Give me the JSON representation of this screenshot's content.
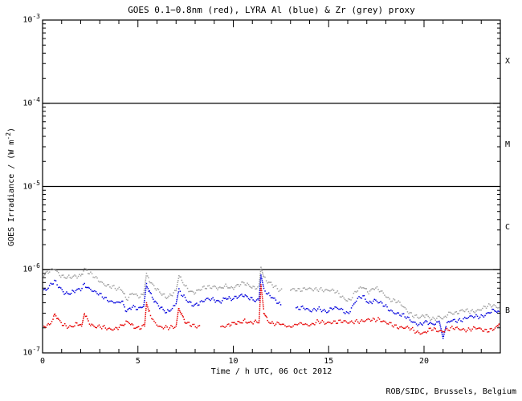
{
  "credit": "ROB/SIDC, Brussels, Belgium",
  "colors": {
    "background": "#ffffff",
    "frame": "#000000",
    "goes_red": "#e60000",
    "lyra_al_blue": "#0000dd",
    "lyra_zr_grey": "#a0a0a0"
  },
  "chart_data": {
    "type": "line",
    "title": "GOES 0.1−0.8nm (red), LYRA Al (blue) & Zr (grey) proxy",
    "xlabel": "Time / h UTC, 06 Oct 2012",
    "ylabel": "GOES Irradiance / (W m-2)",
    "ylabel_parts": {
      "pre": "GOES Irradiance / (W m",
      "exp": "-2",
      "post": ")"
    },
    "axes": {
      "x": {
        "min": 0,
        "max": 24,
        "major_step": 5,
        "minor_step": 1,
        "tick_labels": [
          0,
          5,
          10,
          15,
          20
        ]
      },
      "y": {
        "scale": "log",
        "min_exp": -7,
        "max_exp": -3,
        "tick_exponents": [
          -3,
          -4,
          -5,
          -6,
          -7
        ]
      }
    },
    "class_boundary_exponents": [
      -4,
      -5,
      -6
    ],
    "flare_classes": [
      {
        "label": "X",
        "exp_low": -4,
        "exp_high": -3
      },
      {
        "label": "M",
        "exp_low": -5,
        "exp_high": -4
      },
      {
        "label": "C",
        "exp_low": -6,
        "exp_high": -5
      },
      {
        "label": "B",
        "exp_low": -7,
        "exp_high": -6
      }
    ],
    "series": [
      {
        "name": "LYRA Zr proxy",
        "color": "#a0a0a0",
        "segments": [
          [
            [
              0,
              8.4e-07
            ],
            [
              0.3,
              9.2e-07
            ],
            [
              0.63,
              1.03e-06
            ],
            [
              0.9,
              8.9e-07
            ],
            [
              1.2,
              8.1e-07
            ],
            [
              1.5,
              7.9e-07
            ],
            [
              1.75,
              8.3e-07
            ],
            [
              2.0,
              8.6e-07
            ],
            [
              2.2,
              1.05e-06
            ],
            [
              2.45,
              9e-07
            ],
            [
              2.8,
              7.8e-07
            ],
            [
              3.2,
              6.9e-07
            ],
            [
              3.6,
              6.2e-07
            ],
            [
              3.95,
              5.7e-07
            ],
            [
              4.15,
              5.9e-07
            ],
            [
              4.4,
              4.5e-07
            ],
            [
              4.7,
              5.2e-07
            ],
            [
              5.05,
              4.6e-07
            ],
            [
              5.3,
              5e-07
            ],
            [
              5.45,
              8.9e-07
            ],
            [
              5.65,
              7.3e-07
            ],
            [
              5.9,
              6e-07
            ],
            [
              6.2,
              5.1e-07
            ],
            [
              6.5,
              4.7e-07
            ],
            [
              6.8,
              5.2e-07
            ],
            [
              7.0,
              5.6e-07
            ],
            [
              7.15,
              8.3e-07
            ],
            [
              7.35,
              6.9e-07
            ],
            [
              7.6,
              5.9e-07
            ],
            [
              7.9,
              5.4e-07
            ],
            [
              8.2,
              5.6e-07
            ],
            [
              8.6,
              6.1e-07
            ],
            [
              9.0,
              6.4e-07
            ],
            [
              9.3,
              5.9e-07
            ],
            [
              9.6,
              6.2e-07
            ],
            [
              9.9,
              6e-07
            ],
            [
              10.2,
              6.6e-07
            ],
            [
              10.5,
              6.9e-07
            ],
            [
              10.8,
              6.3e-07
            ],
            [
              11.1,
              6.1e-07
            ],
            [
              11.35,
              6.4e-07
            ],
            [
              11.45,
              1.07e-06
            ],
            [
              11.6,
              8e-07
            ],
            [
              11.8,
              7e-07
            ],
            [
              12.1,
              6.4e-07
            ],
            [
              12.6,
              5.6e-07
            ]
          ],
          [
            [
              13.0,
              5.6e-07
            ],
            [
              13.4,
              5.8e-07
            ],
            [
              13.8,
              6e-07
            ],
            [
              14.2,
              5.6e-07
            ],
            [
              14.6,
              5.9e-07
            ],
            [
              15.0,
              5.7e-07
            ],
            [
              15.4,
              5.3e-07
            ],
            [
              15.8,
              4.6e-07
            ],
            [
              16.1,
              4.3e-07
            ],
            [
              16.45,
              5.4e-07
            ],
            [
              16.8,
              6.3e-07
            ],
            [
              17.1,
              5.5e-07
            ],
            [
              17.4,
              6e-07
            ],
            [
              17.8,
              5.3e-07
            ],
            [
              18.2,
              4.5e-07
            ],
            [
              18.6,
              4.1e-07
            ],
            [
              19.0,
              3.4e-07
            ],
            [
              19.4,
              2.9e-07
            ],
            [
              19.8,
              2.6e-07
            ],
            [
              20.1,
              2.8e-07
            ],
            [
              20.4,
              2.6e-07
            ],
            [
              20.8,
              2.7e-07
            ],
            [
              21.05,
              2.5e-07
            ],
            [
              21.3,
              3e-07
            ],
            [
              21.7,
              3.1e-07
            ],
            [
              22.0,
              3.2e-07
            ],
            [
              22.4,
              3.1e-07
            ],
            [
              22.8,
              3.3e-07
            ],
            [
              23.2,
              3.5e-07
            ],
            [
              23.6,
              3.7e-07
            ],
            [
              24,
              3.6e-07
            ]
          ]
        ]
      },
      {
        "name": "LYRA Al proxy",
        "color": "#0000dd",
        "segments": [
          [
            [
              0,
              5.6e-07
            ],
            [
              0.3,
              6.1e-07
            ],
            [
              0.63,
              7.1e-07
            ],
            [
              0.9,
              6.1e-07
            ],
            [
              1.2,
              5.3e-07
            ],
            [
              1.5,
              5.2e-07
            ],
            [
              1.75,
              5.5e-07
            ],
            [
              2.0,
              5.8e-07
            ],
            [
              2.2,
              6.8e-07
            ],
            [
              2.45,
              6e-07
            ],
            [
              2.8,
              5.2e-07
            ],
            [
              3.2,
              4.7e-07
            ],
            [
              3.6,
              4.2e-07
            ],
            [
              3.95,
              3.9e-07
            ],
            [
              4.15,
              4.1e-07
            ],
            [
              4.4,
              3.2e-07
            ],
            [
              4.7,
              3.7e-07
            ],
            [
              5.05,
              3.3e-07
            ],
            [
              5.3,
              3.6e-07
            ],
            [
              5.45,
              6.7e-07
            ],
            [
              5.65,
              5.3e-07
            ],
            [
              5.9,
              4.2e-07
            ],
            [
              6.2,
              3.4e-07
            ],
            [
              6.5,
              3e-07
            ],
            [
              6.8,
              3.5e-07
            ],
            [
              7.0,
              3.9e-07
            ],
            [
              7.15,
              5.7e-07
            ],
            [
              7.35,
              4.8e-07
            ],
            [
              7.6,
              4.1e-07
            ],
            [
              7.9,
              3.8e-07
            ],
            [
              8.2,
              4e-07
            ],
            [
              8.6,
              4.3e-07
            ],
            [
              9.0,
              4.4e-07
            ],
            [
              9.3,
              4.2e-07
            ],
            [
              9.6,
              4.5e-07
            ],
            [
              9.9,
              4.3e-07
            ],
            [
              10.2,
              4.8e-07
            ],
            [
              10.5,
              5.1e-07
            ],
            [
              10.8,
              4.5e-07
            ],
            [
              11.1,
              4.2e-07
            ],
            [
              11.35,
              4.3e-07
            ],
            [
              11.45,
              8.6e-07
            ],
            [
              11.6,
              6e-07
            ],
            [
              11.8,
              5.1e-07
            ],
            [
              12.1,
              4.4e-07
            ],
            [
              12.55,
              3.7e-07
            ]
          ],
          [
            [
              13.3,
              3.3e-07
            ],
            [
              13.7,
              3.6e-07
            ],
            [
              14.1,
              3.2e-07
            ],
            [
              14.5,
              3.3e-07
            ],
            [
              14.9,
              3.2e-07
            ],
            [
              15.2,
              3.5e-07
            ],
            [
              15.6,
              3.3e-07
            ],
            [
              16.0,
              3e-07
            ],
            [
              16.45,
              4.3e-07
            ],
            [
              16.8,
              4.7e-07
            ],
            [
              17.1,
              4e-07
            ],
            [
              17.4,
              4.4e-07
            ],
            [
              17.8,
              3.8e-07
            ],
            [
              18.2,
              3.3e-07
            ],
            [
              18.6,
              3e-07
            ],
            [
              19.0,
              2.7e-07
            ],
            [
              19.4,
              2.4e-07
            ],
            [
              19.8,
              2.2e-07
            ],
            [
              20.1,
              2.3e-07
            ],
            [
              20.4,
              2.2e-07
            ],
            [
              20.8,
              2.4e-07
            ],
            [
              21.0,
              1.5e-07
            ],
            [
              21.15,
              2.1e-07
            ],
            [
              21.4,
              2.4e-07
            ],
            [
              21.8,
              2.5e-07
            ],
            [
              22.2,
              2.6e-07
            ],
            [
              22.6,
              2.7e-07
            ],
            [
              23.0,
              2.8e-07
            ],
            [
              23.4,
              3e-07
            ],
            [
              23.7,
              3.2e-07
            ],
            [
              24,
              3e-07
            ]
          ]
        ]
      },
      {
        "name": "GOES 0.1-0.8nm",
        "color": "#e60000",
        "segments": [
          [
            [
              0,
              2.1e-07
            ],
            [
              0.3,
              2.2e-07
            ],
            [
              0.55,
              2.5e-07
            ],
            [
              0.65,
              2.9e-07
            ],
            [
              0.85,
              2.4e-07
            ],
            [
              1.1,
              2.15e-07
            ],
            [
              1.5,
              2.1e-07
            ],
            [
              1.8,
              2.2e-07
            ],
            [
              2.05,
              2.1e-07
            ],
            [
              2.2,
              3e-07
            ],
            [
              2.4,
              2.4e-07
            ],
            [
              2.7,
              2.1e-07
            ],
            [
              3.1,
              2e-07
            ],
            [
              3.5,
              1.95e-07
            ],
            [
              3.9,
              2e-07
            ],
            [
              4.2,
              2.1e-07
            ],
            [
              4.5,
              2.35e-07
            ],
            [
              4.8,
              2.1e-07
            ],
            [
              5.1,
              2e-07
            ],
            [
              5.35,
              2.1e-07
            ],
            [
              5.45,
              4e-07
            ],
            [
              5.6,
              3e-07
            ],
            [
              5.85,
              2.4e-07
            ],
            [
              6.2,
              2.05e-07
            ],
            [
              6.6,
              1.95e-07
            ],
            [
              7.0,
              2.1e-07
            ],
            [
              7.15,
              3.6e-07
            ],
            [
              7.3,
              2.9e-07
            ],
            [
              7.5,
              2.3e-07
            ],
            [
              7.8,
              2.1e-07
            ],
            [
              8.3,
              2.1e-07
            ]
          ],
          [
            [
              9.35,
              2.1e-07
            ],
            [
              9.7,
              2.15e-07
            ],
            [
              10.0,
              2.2e-07
            ],
            [
              10.3,
              2.3e-07
            ],
            [
              10.6,
              2.5e-07
            ],
            [
              10.85,
              2.3e-07
            ],
            [
              11.1,
              2.3e-07
            ],
            [
              11.35,
              2.3e-07
            ],
            [
              11.45,
              6.6e-07
            ],
            [
              11.6,
              3.2e-07
            ],
            [
              11.8,
              2.5e-07
            ],
            [
              12.1,
              2.2e-07
            ],
            [
              12.5,
              2.2e-07
            ],
            [
              13.0,
              2.1e-07
            ],
            [
              13.5,
              2.2e-07
            ],
            [
              14.0,
              2.2e-07
            ],
            [
              14.4,
              2.35e-07
            ],
            [
              14.8,
              2.25e-07
            ],
            [
              15.2,
              2.4e-07
            ],
            [
              15.6,
              2.35e-07
            ],
            [
              16.0,
              2.3e-07
            ],
            [
              16.4,
              2.45e-07
            ],
            [
              16.8,
              2.35e-07
            ],
            [
              17.2,
              2.5e-07
            ],
            [
              17.6,
              2.6e-07
            ],
            [
              18.0,
              2.25e-07
            ],
            [
              18.4,
              2.15e-07
            ],
            [
              18.8,
              2.05e-07
            ],
            [
              19.2,
              1.95e-07
            ],
            [
              19.6,
              1.8e-07
            ],
            [
              20.0,
              1.75e-07
            ],
            [
              20.4,
              1.9e-07
            ],
            [
              20.8,
              1.85e-07
            ],
            [
              21.2,
              1.9e-07
            ],
            [
              21.6,
              1.95e-07
            ],
            [
              22.0,
              1.95e-07
            ],
            [
              22.4,
              1.9e-07
            ],
            [
              22.8,
              1.95e-07
            ],
            [
              23.2,
              1.9e-07
            ],
            [
              23.6,
              1.9e-07
            ],
            [
              23.85,
              2e-07
            ],
            [
              24,
              2.4e-07
            ]
          ]
        ]
      }
    ]
  }
}
